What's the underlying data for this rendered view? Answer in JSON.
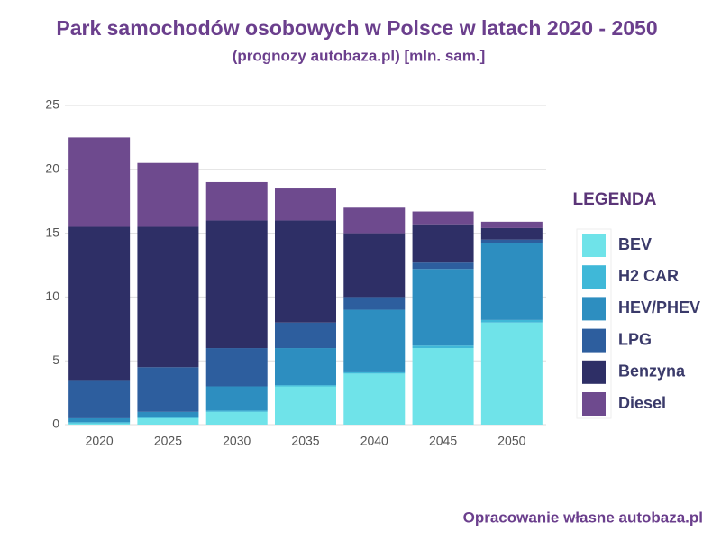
{
  "chart_data": {
    "type": "stacked_bar",
    "title": "Park samochodów osobowych w Polsce w latach 2020 - 2050",
    "subtitle": "(prognozy autobaza.pl) [mln. sam.]",
    "legend_title": "LEGENDA",
    "source": "Opracowanie własne autobaza.pl",
    "categories": [
      "2020",
      "2025",
      "2030",
      "2035",
      "2040",
      "2045",
      "2050"
    ],
    "series": [
      {
        "name": "BEV",
        "color": "#6fe3e9",
        "values": [
          0.1,
          0.5,
          1,
          3,
          4,
          6,
          8
        ]
      },
      {
        "name": "H2 CAR",
        "color": "#3fb8d8",
        "values": [
          0.1,
          0.1,
          0.1,
          0.1,
          0.1,
          0.2,
          0.2
        ]
      },
      {
        "name": "HEV/PHEV",
        "color": "#2d8ec0",
        "values": [
          0.3,
          0.4,
          1.9,
          2.9,
          4.9,
          6,
          6
        ]
      },
      {
        "name": "LPG",
        "color": "#2d5e9e",
        "values": [
          3,
          3.5,
          3,
          2,
          1,
          0.5,
          0.3
        ]
      },
      {
        "name": "Benzyna",
        "color": "#2e2f66",
        "values": [
          12,
          11,
          10,
          8,
          5,
          3,
          0.9
        ]
      },
      {
        "name": "Diesel",
        "color": "#6e4a8e",
        "values": [
          7,
          5,
          3,
          2.5,
          2,
          1,
          0.5
        ]
      }
    ],
    "ylim": [
      0,
      25
    ],
    "yticks": [
      0,
      5,
      10,
      15,
      20,
      25
    ],
    "grid": true
  }
}
